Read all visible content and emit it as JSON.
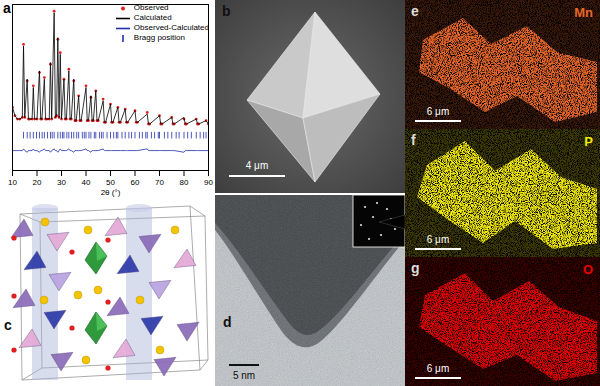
{
  "chart_data": {
    "type": "line",
    "panel": "a",
    "x_label": "2θ (°)",
    "x": [
      10,
      11,
      12,
      13,
      14,
      14.5,
      15,
      16,
      16.5,
      17,
      18,
      18.5,
      19,
      20,
      21,
      21.5,
      22,
      23,
      23.5,
      24,
      25,
      25.5,
      26,
      27,
      27.5,
      28,
      28.5,
      29,
      29.5,
      30,
      31,
      31.5,
      32,
      33,
      33.5,
      34,
      35,
      35.5,
      36,
      37,
      37.5,
      38,
      40,
      40.5,
      41,
      42,
      42.5,
      43,
      44,
      44.5,
      45,
      47,
      47.5,
      48,
      50,
      50.5,
      51,
      53,
      53.5,
      54,
      56,
      56.5,
      57,
      60,
      60.5,
      61,
      65,
      65.5,
      66,
      70,
      70.5,
      71,
      75,
      75.5,
      76,
      80,
      80.5,
      81,
      85,
      85.5,
      86,
      89,
      90
    ],
    "series": [
      {
        "name": "Observed",
        "type": "scatter",
        "marker": "circle",
        "color": "#e02020",
        "values": [
          38,
          33,
          31,
          31,
          32,
          76,
          32,
          54,
          31,
          31,
          31,
          51,
          31,
          31,
          59,
          31,
          31,
          56,
          31,
          31,
          31,
          64,
          31,
          96,
          32,
          33,
          79,
          32,
          71,
          31,
          55,
          31,
          31,
          61,
          31,
          31,
          54,
          30,
          30,
          45,
          30,
          30,
          51,
          30,
          30,
          44,
          30,
          30,
          48,
          30,
          30,
          43,
          29,
          29,
          40,
          29,
          29,
          38,
          29,
          29,
          37,
          29,
          29,
          36,
          29,
          29,
          35,
          28,
          28,
          33,
          28,
          28,
          32,
          28,
          28,
          31,
          28,
          28,
          31,
          28,
          28,
          30,
          28
        ]
      },
      {
        "name": "Calculated",
        "type": "line",
        "color": "#000000",
        "values": [
          38,
          33,
          31,
          31,
          32,
          75,
          32,
          55,
          31,
          31,
          31,
          50,
          31,
          31,
          60,
          31,
          31,
          55,
          31,
          31,
          31,
          65,
          31,
          95,
          32,
          33,
          80,
          32,
          70,
          31,
          55,
          31,
          31,
          60,
          31,
          31,
          55,
          30,
          30,
          45,
          30,
          30,
          50,
          30,
          30,
          45,
          30,
          30,
          48,
          30,
          30,
          42,
          29,
          29,
          40,
          29,
          29,
          38,
          29,
          29,
          37,
          29,
          29,
          36,
          29,
          29,
          34,
          28,
          28,
          33,
          28,
          28,
          32,
          28,
          28,
          32,
          28,
          28,
          31,
          28,
          28,
          30,
          28
        ]
      },
      {
        "name": "Observed-Calculated",
        "type": "line",
        "color": "#1f2fa8",
        "values": [
          12,
          12,
          12,
          12,
          12,
          13,
          12,
          11,
          12,
          12,
          12,
          13,
          12,
          12,
          11,
          12,
          12,
          13,
          12,
          12,
          12,
          11,
          12,
          13,
          12,
          12,
          11,
          12,
          13,
          12,
          12,
          12,
          12,
          13,
          12,
          12,
          11,
          12,
          12,
          12,
          12,
          12,
          13,
          12,
          12,
          11,
          12,
          12,
          12,
          12,
          12,
          13,
          12,
          12,
          12,
          12,
          12,
          12,
          12,
          12,
          12,
          12,
          12,
          12,
          12,
          12,
          13,
          12,
          12,
          12,
          12,
          12,
          12,
          12,
          12,
          11,
          12,
          12,
          12,
          12,
          12,
          12,
          12
        ]
      }
    ],
    "bragg_positions": {
      "name": "Bragg position",
      "color": "#1f2fa8",
      "x": [
        14.5,
        16,
        17.2,
        18.5,
        19.8,
        21,
        22.1,
        23,
        24.3,
        25.5,
        26.2,
        27,
        28.5,
        29.5,
        30.4,
        31,
        32.2,
        33,
        34.1,
        35,
        36.2,
        37,
        38.5,
        39.3,
        40,
        41.2,
        42,
        43.4,
        44,
        45.5,
        46.3,
        47,
        48.6,
        50,
        51.3,
        52.4,
        53,
        54.7,
        56,
        57.5,
        58.6,
        60,
        61.8,
        63,
        64.4,
        65,
        66.7,
        68,
        69.5,
        70,
        72,
        73.4,
        75,
        76.8,
        78,
        80,
        81.5,
        83,
        85,
        86.6,
        88,
        89
      ],
      "band": [
        19,
        23
      ]
    },
    "xlim": [
      10,
      90
    ],
    "xticks": [
      10,
      20,
      30,
      40,
      50,
      60,
      70,
      80,
      90
    ],
    "ylim": [
      0,
      100
    ],
    "tick_labels": "x",
    "legend": "top-right"
  },
  "panels": [
    {
      "label": "b",
      "scale_bar": "4 μm"
    },
    {
      "label": "c"
    },
    {
      "label": "d",
      "scale_bar": "5 nm"
    },
    {
      "label": "e",
      "element": "Mn",
      "color": "#e8662c",
      "scale_bar": "6 μm"
    },
    {
      "label": "f",
      "element": "P",
      "color": "#f2ea0a",
      "scale_bar": "6 μm"
    },
    {
      "label": "g",
      "element": "O",
      "color": "#e80000",
      "scale_bar": "6 μm"
    }
  ]
}
